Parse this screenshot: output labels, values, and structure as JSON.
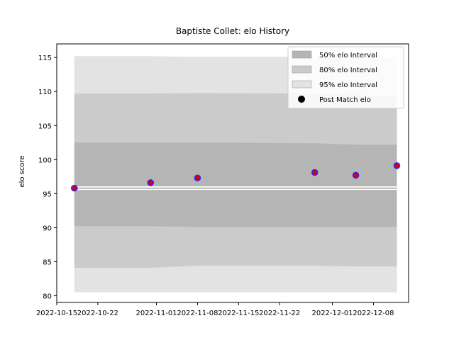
{
  "chart_data": {
    "type": "line",
    "title": "Baptiste Collet: elo History",
    "xlabel": "",
    "ylabel": "elo score",
    "x_ticks": [
      "2022-10-15",
      "2022-10-22",
      "2022-11-01",
      "2022-11-08",
      "2022-11-15",
      "2022-11-22",
      "2022-12-01",
      "2022-12-08"
    ],
    "y_ticks": [
      "80",
      "85",
      "90",
      "95",
      "100",
      "105",
      "110",
      "115"
    ],
    "xlim": [
      "2022-10-15",
      "2022-12-14"
    ],
    "ylim": [
      79,
      117
    ],
    "x": [
      "2022-10-18",
      "2022-10-31",
      "2022-11-08",
      "2022-11-28",
      "2022-12-05",
      "2022-12-12"
    ],
    "post_match_elo": [
      95.8,
      96.6,
      97.3,
      98.1,
      97.7,
      99.1
    ],
    "mean_line": [
      95.8,
      95.8,
      95.8,
      95.8,
      95.8,
      95.8
    ],
    "band_x": [
      "2022-10-18",
      "2022-10-31",
      "2022-11-08",
      "2022-11-28",
      "2022-12-05",
      "2022-12-12"
    ],
    "bands": [
      {
        "name": "95% elo Interval",
        "color": "#e3e3e3",
        "upper": [
          115.2,
          115.2,
          115.1,
          115.1,
          115.0,
          115.0
        ],
        "lower": [
          80.5,
          80.5,
          80.5,
          80.5,
          80.5,
          80.5
        ]
      },
      {
        "name": "80% elo Interval",
        "color": "#cbcbcb",
        "upper": [
          109.7,
          109.7,
          109.8,
          109.7,
          109.5,
          109.3
        ],
        "lower": [
          84.1,
          84.1,
          84.4,
          84.4,
          84.3,
          84.3
        ]
      },
      {
        "name": "50% elo Interval",
        "color": "#b5b5b5",
        "upper": [
          102.5,
          102.5,
          102.5,
          102.4,
          102.2,
          102.2
        ],
        "lower": [
          90.2,
          90.2,
          90.1,
          90.1,
          90.1,
          90.1
        ]
      }
    ],
    "legend": {
      "position": "top-right",
      "entries": [
        "50% elo Interval",
        "80% elo Interval",
        "95% elo Interval",
        "Post Match elo"
      ]
    },
    "point_fill": "#dd0000",
    "point_edge": "#2222ff",
    "grid": false
  }
}
